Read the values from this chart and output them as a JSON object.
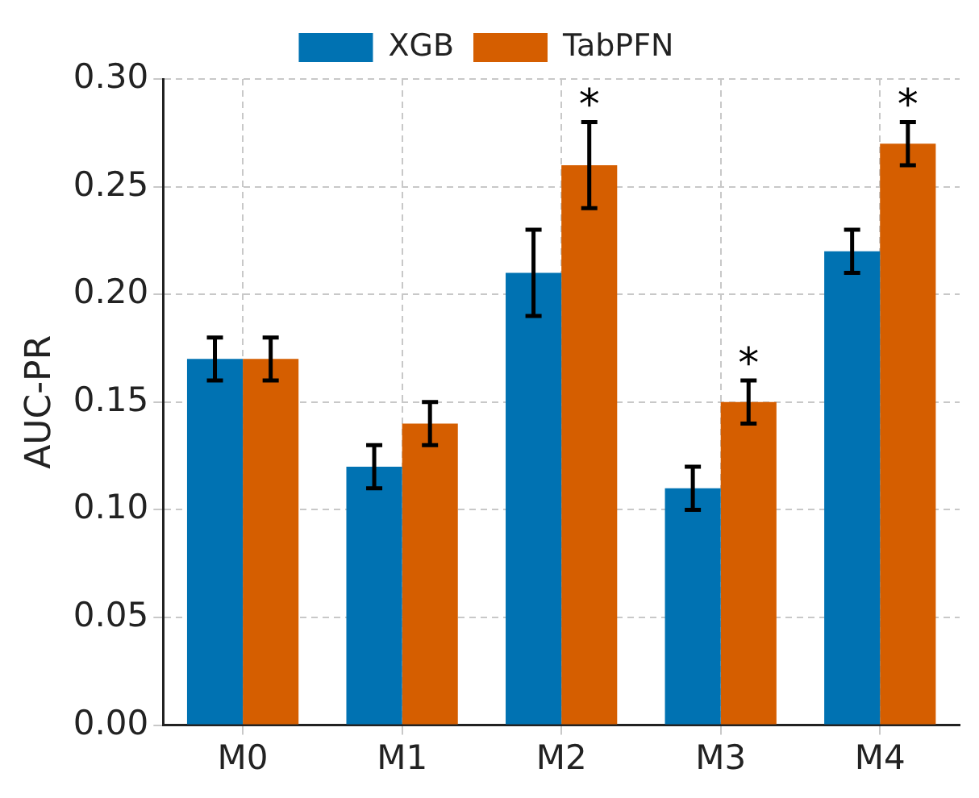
{
  "chart_data": {
    "type": "bar",
    "ylabel": "AUC-PR",
    "categories": [
      "M0",
      "M1",
      "M2",
      "M3",
      "M4"
    ],
    "series": [
      {
        "name": "XGB",
        "color": "#0072b2",
        "values": [
          0.17,
          0.12,
          0.21,
          0.11,
          0.22
        ],
        "errors": [
          0.01,
          0.01,
          0.02,
          0.01,
          0.01
        ]
      },
      {
        "name": "TabPFN",
        "color": "#d55e00",
        "values": [
          0.17,
          0.14,
          0.26,
          0.15,
          0.27
        ],
        "errors": [
          0.01,
          0.01,
          0.02,
          0.01,
          0.01
        ]
      }
    ],
    "ylim": [
      0,
      0.3
    ],
    "yticks": [
      {
        "value": 0,
        "label": "0.00"
      },
      {
        "value": 0.05,
        "label": "0.05"
      },
      {
        "value": 0.1,
        "label": "0.10"
      },
      {
        "value": 0.15,
        "label": "0.15"
      },
      {
        "value": 0.2,
        "label": "0.20"
      },
      {
        "value": 0.25,
        "label": "0.25"
      },
      {
        "value": 0.3,
        "label": "0.30"
      }
    ],
    "grid": true,
    "legend": "top",
    "line_style": "dashed",
    "annotations": [
      "*",
      "*",
      "*"
    ]
  }
}
